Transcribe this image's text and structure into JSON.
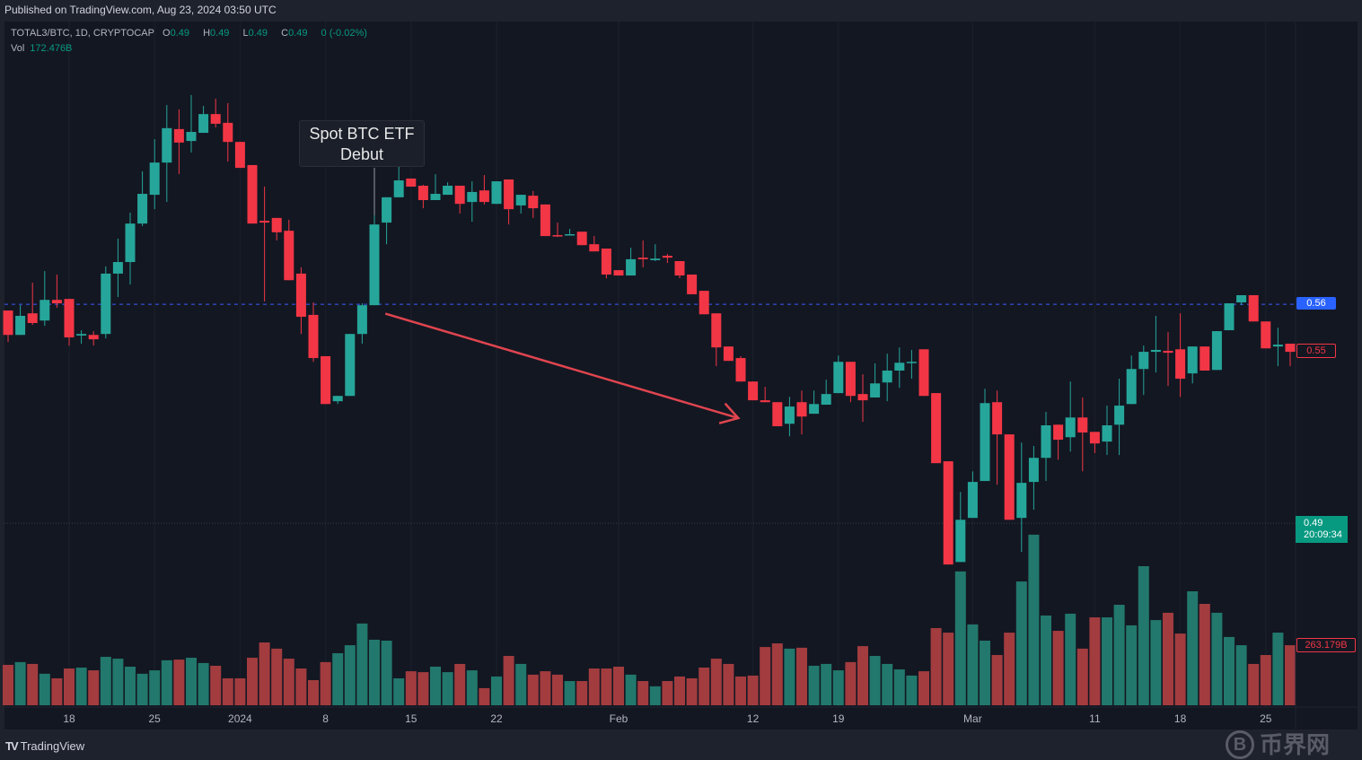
{
  "header": {
    "published": "Published on TradingView.com, Aug 23, 2024 03:50 UTC"
  },
  "legend": {
    "symbol": "TOTAL3/BTC, 1D, CRYPTOCAP",
    "o_label": "O",
    "o": "0.49",
    "h_label": "H",
    "h": "0.49",
    "l_label": "L",
    "l": "0.49",
    "c_label": "C",
    "c": "0.49",
    "change": "0 (-0.02%)",
    "vol_label": "Vol",
    "vol": "172.476B"
  },
  "annotation": {
    "line1": "Spot BTC ETF",
    "line2": "Debut"
  },
  "price_labels": {
    "hline": "0.56",
    "last": "0.55",
    "current_price": "0.49",
    "countdown": "20:09:34",
    "last_volume": "263.179B"
  },
  "footer": {
    "logo": "TV",
    "brand": "TradingView"
  },
  "watermark": {
    "symbol": "B",
    "text": "币界网"
  },
  "colors": {
    "up": "#26a69a",
    "down": "#f23645",
    "vol_up": "#22786c",
    "vol_down": "#a23c3f",
    "hline": "#2962ff",
    "arrow": "#e0454f"
  },
  "chart_data": {
    "type": "candlestick",
    "title": "TOTAL3/BTC, 1D, CRYPTOCAP",
    "ylim": [
      0.4318,
      0.6501
    ],
    "vol_ylim": [
      0,
      2990
    ],
    "volume_unit": "B",
    "hline_price": 0.56,
    "current_price": 0.49,
    "arrow": {
      "from": [
        30.9,
        0.557
      ],
      "to": [
        59.8,
        0.5236
      ]
    },
    "annotation_index": 30,
    "xticks": [
      {
        "label": "18",
        "index": 5
      },
      {
        "label": "25",
        "index": 12
      },
      {
        "label": "2024",
        "index": 19
      },
      {
        "label": "8",
        "index": 26
      },
      {
        "label": "15",
        "index": 33
      },
      {
        "label": "22",
        "index": 40
      },
      {
        "label": "Feb",
        "index": 50
      },
      {
        "label": "12",
        "index": 61
      },
      {
        "label": "19",
        "index": 68
      },
      {
        "label": "Mar",
        "index": 79
      },
      {
        "label": "11",
        "index": 89
      },
      {
        "label": "18",
        "index": 96
      },
      {
        "label": "25",
        "index": 103
      }
    ],
    "candles_ohlcv": [
      [
        0.558,
        0.558,
        0.5479,
        0.5502,
        177
      ],
      [
        0.5502,
        0.5597,
        0.5502,
        0.5563,
        189
      ],
      [
        0.5571,
        0.5669,
        0.5534,
        0.554,
        181
      ],
      [
        0.5548,
        0.5706,
        0.5531,
        0.5614,
        138
      ],
      [
        0.5614,
        0.5695,
        0.5589,
        0.5603,
        118
      ],
      [
        0.5617,
        0.5617,
        0.5468,
        0.5494,
        161
      ],
      [
        0.55,
        0.5517,
        0.5474,
        0.5505,
        165
      ],
      [
        0.5502,
        0.5514,
        0.5468,
        0.5488,
        153
      ],
      [
        0.5505,
        0.5721,
        0.5491,
        0.5698,
        212
      ],
      [
        0.5698,
        0.581,
        0.5623,
        0.5735,
        204
      ],
      [
        0.5735,
        0.5893,
        0.5663,
        0.5858,
        169
      ],
      [
        0.5858,
        0.6025,
        0.585,
        0.5953,
        138
      ],
      [
        0.595,
        0.6128,
        0.5904,
        0.6053,
        153
      ],
      [
        0.6053,
        0.6237,
        0.5927,
        0.6163,
        197
      ],
      [
        0.616,
        0.6223,
        0.6016,
        0.6117,
        200
      ],
      [
        0.6122,
        0.6269,
        0.6085,
        0.6151,
        208
      ],
      [
        0.6148,
        0.6234,
        0.6148,
        0.6208,
        185
      ],
      [
        0.6208,
        0.6257,
        0.6165,
        0.6177,
        173
      ],
      [
        0.618,
        0.6243,
        0.6056,
        0.6119,
        118
      ],
      [
        0.6119,
        0.6119,
        0.6036,
        0.6036,
        118
      ],
      [
        0.6045,
        0.6045,
        0.5858,
        0.5858,
        208
      ],
      [
        0.5867,
        0.5976,
        0.5609,
        0.5861,
        275
      ],
      [
        0.5876,
        0.5876,
        0.5804,
        0.583,
        248
      ],
      [
        0.5835,
        0.587,
        0.5677,
        0.5677,
        204
      ],
      [
        0.5698,
        0.5718,
        0.5505,
        0.556,
        161
      ],
      [
        0.5566,
        0.5606,
        0.5416,
        0.5428,
        110
      ],
      [
        0.5434,
        0.5434,
        0.5281,
        0.5281,
        189
      ],
      [
        0.529,
        0.5307,
        0.5281,
        0.5307,
        228
      ],
      [
        0.5307,
        0.5505,
        0.5307,
        0.5505,
        263
      ],
      [
        0.5505,
        0.5603,
        0.5474,
        0.5597,
        358
      ],
      [
        0.5597,
        0.5884,
        0.5597,
        0.5855,
        287
      ],
      [
        0.5861,
        0.5942,
        0.5792,
        0.5942,
        283
      ],
      [
        0.5942,
        0.6051,
        0.5942,
        0.5996,
        118
      ],
      [
        0.6002,
        0.6002,
        0.5976,
        0.5976,
        149
      ],
      [
        0.5979,
        0.5982,
        0.5907,
        0.5933,
        145
      ],
      [
        0.5933,
        0.6016,
        0.5933,
        0.5953,
        169
      ],
      [
        0.595,
        0.599,
        0.595,
        0.5979,
        145
      ],
      [
        0.5979,
        0.5979,
        0.589,
        0.5921,
        181
      ],
      [
        0.5927,
        0.5993,
        0.5864,
        0.5959,
        153
      ],
      [
        0.5964,
        0.6013,
        0.5919,
        0.5927,
        75
      ],
      [
        0.5921,
        0.5993,
        0.5921,
        0.5993,
        126
      ],
      [
        0.5999,
        0.5999,
        0.5855,
        0.5904,
        216
      ],
      [
        0.5916,
        0.595,
        0.589,
        0.595,
        181
      ],
      [
        0.5947,
        0.5962,
        0.5876,
        0.5907,
        134
      ],
      [
        0.5919,
        0.5919,
        0.5818,
        0.5818,
        149
      ],
      [
        0.5821,
        0.5861,
        0.5815,
        0.5818,
        134
      ],
      [
        0.5821,
        0.5841,
        0.5821,
        0.5824,
        106
      ],
      [
        0.5832,
        0.5832,
        0.5789,
        0.5789,
        106
      ],
      [
        0.5792,
        0.5818,
        0.5769,
        0.5769,
        161
      ],
      [
        0.5778,
        0.5778,
        0.5683,
        0.5695,
        161
      ],
      [
        0.5709,
        0.5709,
        0.5692,
        0.5692,
        169
      ],
      [
        0.5692,
        0.5781,
        0.5692,
        0.5744,
        134
      ],
      [
        0.5749,
        0.5804,
        0.5718,
        0.5744,
        106
      ],
      [
        0.5741,
        0.5792,
        0.5738,
        0.5746,
        83
      ],
      [
        0.5755,
        0.5761,
        0.5732,
        0.5749,
        106
      ],
      [
        0.5738,
        0.5738,
        0.5683,
        0.5692,
        126
      ],
      [
        0.5695,
        0.5695,
        0.5632,
        0.5632,
        118
      ],
      [
        0.5643,
        0.5643,
        0.5568,
        0.5568,
        165
      ],
      [
        0.5571,
        0.5571,
        0.5402,
        0.5462,
        204
      ],
      [
        0.5465,
        0.5465,
        0.5419,
        0.5419,
        181
      ],
      [
        0.5428,
        0.5434,
        0.5353,
        0.5353,
        126
      ],
      [
        0.5353,
        0.5353,
        0.5293,
        0.5293,
        130
      ],
      [
        0.5293,
        0.5336,
        0.5287,
        0.5287,
        255
      ],
      [
        0.5287,
        0.5287,
        0.521,
        0.521,
        271
      ],
      [
        0.5218,
        0.5304,
        0.5178,
        0.5273,
        248
      ],
      [
        0.5287,
        0.5324,
        0.5184,
        0.5241,
        252
      ],
      [
        0.525,
        0.5324,
        0.525,
        0.5281,
        173
      ],
      [
        0.5279,
        0.5359,
        0.5279,
        0.5313,
        181
      ],
      [
        0.5316,
        0.5436,
        0.5316,
        0.5416,
        153
      ],
      [
        0.5416,
        0.5416,
        0.5287,
        0.5307,
        189
      ],
      [
        0.5313,
        0.5376,
        0.5224,
        0.5293,
        259
      ],
      [
        0.5302,
        0.5411,
        0.5302,
        0.5347,
        216
      ],
      [
        0.535,
        0.5442,
        0.529,
        0.5388,
        181
      ],
      [
        0.5388,
        0.5462,
        0.5333,
        0.5413,
        157
      ],
      [
        0.5413,
        0.5454,
        0.5362,
        0.5416,
        130
      ],
      [
        0.5456,
        0.5456,
        0.5307,
        0.5307,
        149
      ],
      [
        0.5316,
        0.5316,
        0.5092,
        0.5092,
        338
      ],
      [
        0.5098,
        0.5098,
        0.4768,
        0.4768,
        318
      ],
      [
        0.4776,
        0.5,
        0.4776,
        0.4911,
        586
      ],
      [
        0.4917,
        0.5066,
        0.4917,
        0.5032,
        354
      ],
      [
        0.5035,
        0.533,
        0.5035,
        0.5284,
        283
      ],
      [
        0.5287,
        0.5324,
        0.5023,
        0.5184,
        220
      ],
      [
        0.5184,
        0.5184,
        0.4911,
        0.4911,
        318
      ],
      [
        0.4917,
        0.5158,
        0.4808,
        0.5029,
        542
      ],
      [
        0.5032,
        0.5147,
        0.4943,
        0.5109,
        747
      ],
      [
        0.5109,
        0.5256,
        0.5035,
        0.5213,
        393
      ],
      [
        0.5215,
        0.5215,
        0.5103,
        0.5167,
        326
      ],
      [
        0.5175,
        0.5353,
        0.5129,
        0.5238,
        401
      ],
      [
        0.5238,
        0.5302,
        0.5066,
        0.519,
        248
      ],
      [
        0.5192,
        0.5192,
        0.5124,
        0.5155,
        385
      ],
      [
        0.5161,
        0.5276,
        0.5118,
        0.5213,
        385
      ],
      [
        0.5215,
        0.5362,
        0.5118,
        0.5276,
        440
      ],
      [
        0.5281,
        0.5436,
        0.5281,
        0.5393,
        350
      ],
      [
        0.5393,
        0.5468,
        0.531,
        0.5448,
        609
      ],
      [
        0.5448,
        0.5563,
        0.5382,
        0.5454,
        373
      ],
      [
        0.5451,
        0.5511,
        0.5339,
        0.5445,
        405
      ],
      [
        0.5456,
        0.5571,
        0.5304,
        0.5362,
        314
      ],
      [
        0.5379,
        0.5465,
        0.5347,
        0.5465,
        499
      ],
      [
        0.5465,
        0.5465,
        0.5388,
        0.5388,
        444
      ],
      [
        0.539,
        0.5514,
        0.539,
        0.5514,
        405
      ],
      [
        0.5517,
        0.5603,
        0.5517,
        0.5603,
        299
      ],
      [
        0.5606,
        0.5629,
        0.5597,
        0.5629,
        263
      ],
      [
        0.5629,
        0.5629,
        0.5545,
        0.5545,
        181
      ],
      [
        0.5545,
        0.5545,
        0.5459,
        0.5459,
        220
      ],
      [
        0.5465,
        0.5525,
        0.5402,
        0.5471,
        318
      ],
      [
        0.5474,
        0.5474,
        0.5402,
        0.5448,
        263
      ]
    ]
  }
}
